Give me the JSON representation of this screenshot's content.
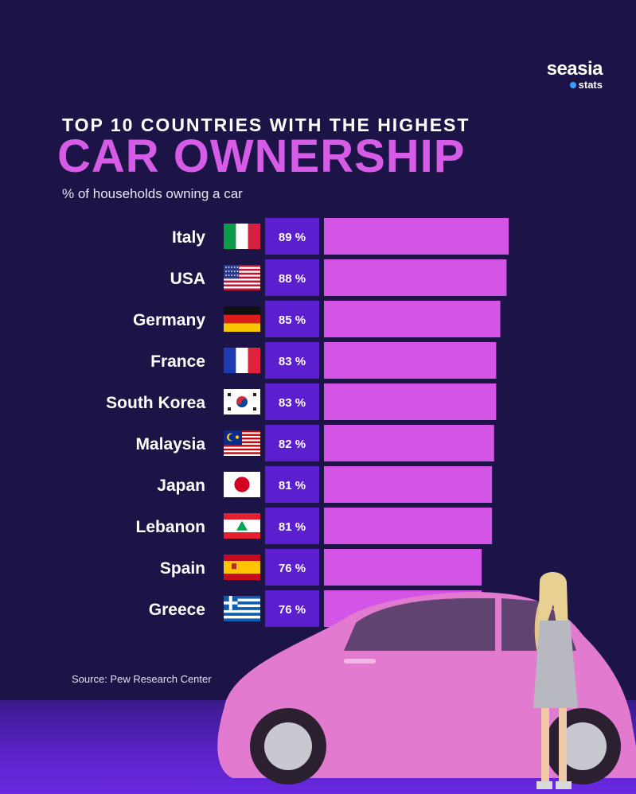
{
  "brand": {
    "name": "seasia",
    "sub": "stats",
    "dot_color": "#3aa0ff"
  },
  "header": {
    "kicker": "TOP 10 COUNTRIES WITH THE HIGHEST",
    "title": "CAR OWNERSHIP",
    "description": "% of households owning a car"
  },
  "colors": {
    "background": "#1c1446",
    "bar": "#d454e6",
    "label_box": "#5b1fd0",
    "title": "#d65be6"
  },
  "chart_data": {
    "type": "bar",
    "orientation": "horizontal",
    "categories": [
      "Italy",
      "USA",
      "Germany",
      "France",
      "South Korea",
      "Malaysia",
      "Japan",
      "Lebanon",
      "Spain",
      "Greece"
    ],
    "values": [
      89,
      88,
      85,
      83,
      83,
      82,
      81,
      81,
      76,
      76
    ],
    "value_labels": [
      "89 %",
      "88 %",
      "85 %",
      "83 %",
      "83 %",
      "82 %",
      "81 %",
      "81 %",
      "76 %",
      "76 %"
    ],
    "flags": [
      "flag-italy",
      "flag-usa",
      "flag-germany",
      "flag-france",
      "flag-south-korea",
      "flag-malaysia",
      "flag-japan",
      "flag-lebanon",
      "flag-spain",
      "flag-greece"
    ],
    "title": "CAR OWNERSHIP",
    "subtitle": "% of households owning a car",
    "xlim": [
      0,
      100
    ],
    "grid": false,
    "legend": "none"
  },
  "source": "Source: Pew Research Center",
  "illustration": {
    "subject": "pink-car-icon"
  }
}
